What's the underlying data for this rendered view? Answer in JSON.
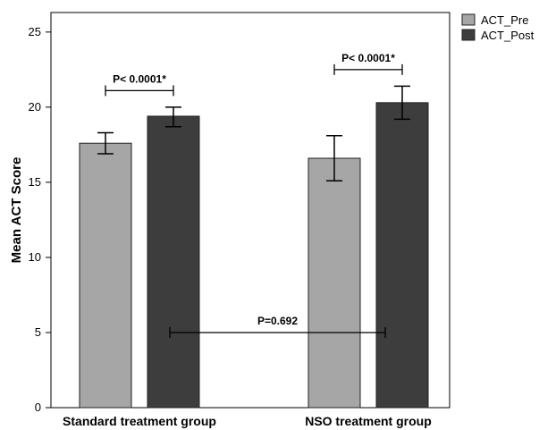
{
  "chart_data": {
    "type": "bar",
    "title": "",
    "xlabel": "",
    "ylabel": "Mean ACT Score",
    "ylim": [
      0,
      25
    ],
    "yticks": [
      0,
      5,
      10,
      15,
      20,
      25
    ],
    "categories": [
      "Standard treatment group",
      "NSO treatment group"
    ],
    "series": [
      {
        "name": "ACT_Pre",
        "color": "#a6a6a6",
        "values": [
          17.6,
          16.6
        ],
        "err_low": [
          16.9,
          15.1
        ],
        "err_high": [
          18.3,
          18.1
        ]
      },
      {
        "name": "ACT_Post",
        "color": "#3d3d3d",
        "values": [
          19.4,
          20.3
        ],
        "err_low": [
          18.7,
          19.2
        ],
        "err_high": [
          20.0,
          21.4
        ]
      }
    ],
    "grid": false,
    "legend": "top-right",
    "annotations": [
      {
        "text": "P< 0.0001*",
        "span": "pre-post",
        "category": 0,
        "level": 21.1
      },
      {
        "text": "P< 0.0001*",
        "span": "pre-post",
        "category": 1,
        "level": 22.5
      },
      {
        "text": "P=0.692",
        "span": "between-groups",
        "level": 5.0
      }
    ]
  }
}
